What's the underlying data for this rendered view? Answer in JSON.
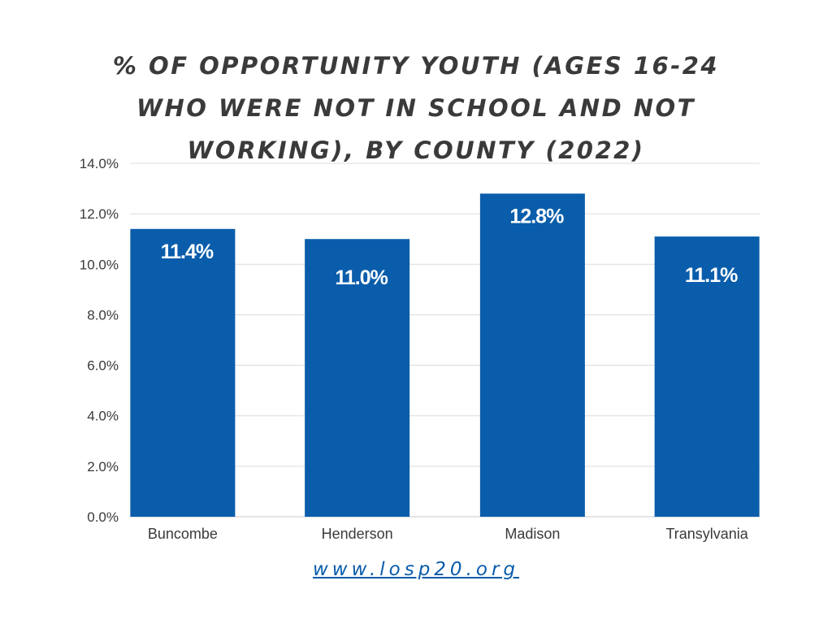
{
  "title": "% OF OPPORTUNITY YOUTH (AGES 16-24 WHO WERE NOT IN SCHOOL AND NOT WORKING), BY COUNTY (2022)",
  "footer": {
    "link_text": "www.losp20.org"
  },
  "colors": {
    "bar": "#0a5dab",
    "grid": "#dcdcdc",
    "axis_text": "#3a3a3a",
    "title": "#3a3a3a",
    "data_label": "#ffffff"
  },
  "chart_data": {
    "type": "bar",
    "title": "% OF OPPORTUNITY YOUTH (AGES 16-24 WHO WERE NOT IN SCHOOL AND NOT WORKING), BY COUNTY (2022)",
    "categories": [
      "Buncombe",
      "Henderson",
      "Madison",
      "Transylvania"
    ],
    "values": [
      11.4,
      11.0,
      12.8,
      11.1
    ],
    "data_labels": [
      "11.4%",
      "11.0%",
      "12.8%",
      "11.1%"
    ],
    "xlabel": "",
    "ylabel": "",
    "ylim": [
      0,
      14
    ],
    "yticks": [
      0,
      2,
      4,
      6,
      8,
      10,
      12,
      14
    ],
    "ytick_labels": [
      "0.0%",
      "2.0%",
      "4.0%",
      "6.0%",
      "8.0%",
      "10.0%",
      "12.0%",
      "14.0%"
    ],
    "grid": true,
    "legend": "none"
  }
}
